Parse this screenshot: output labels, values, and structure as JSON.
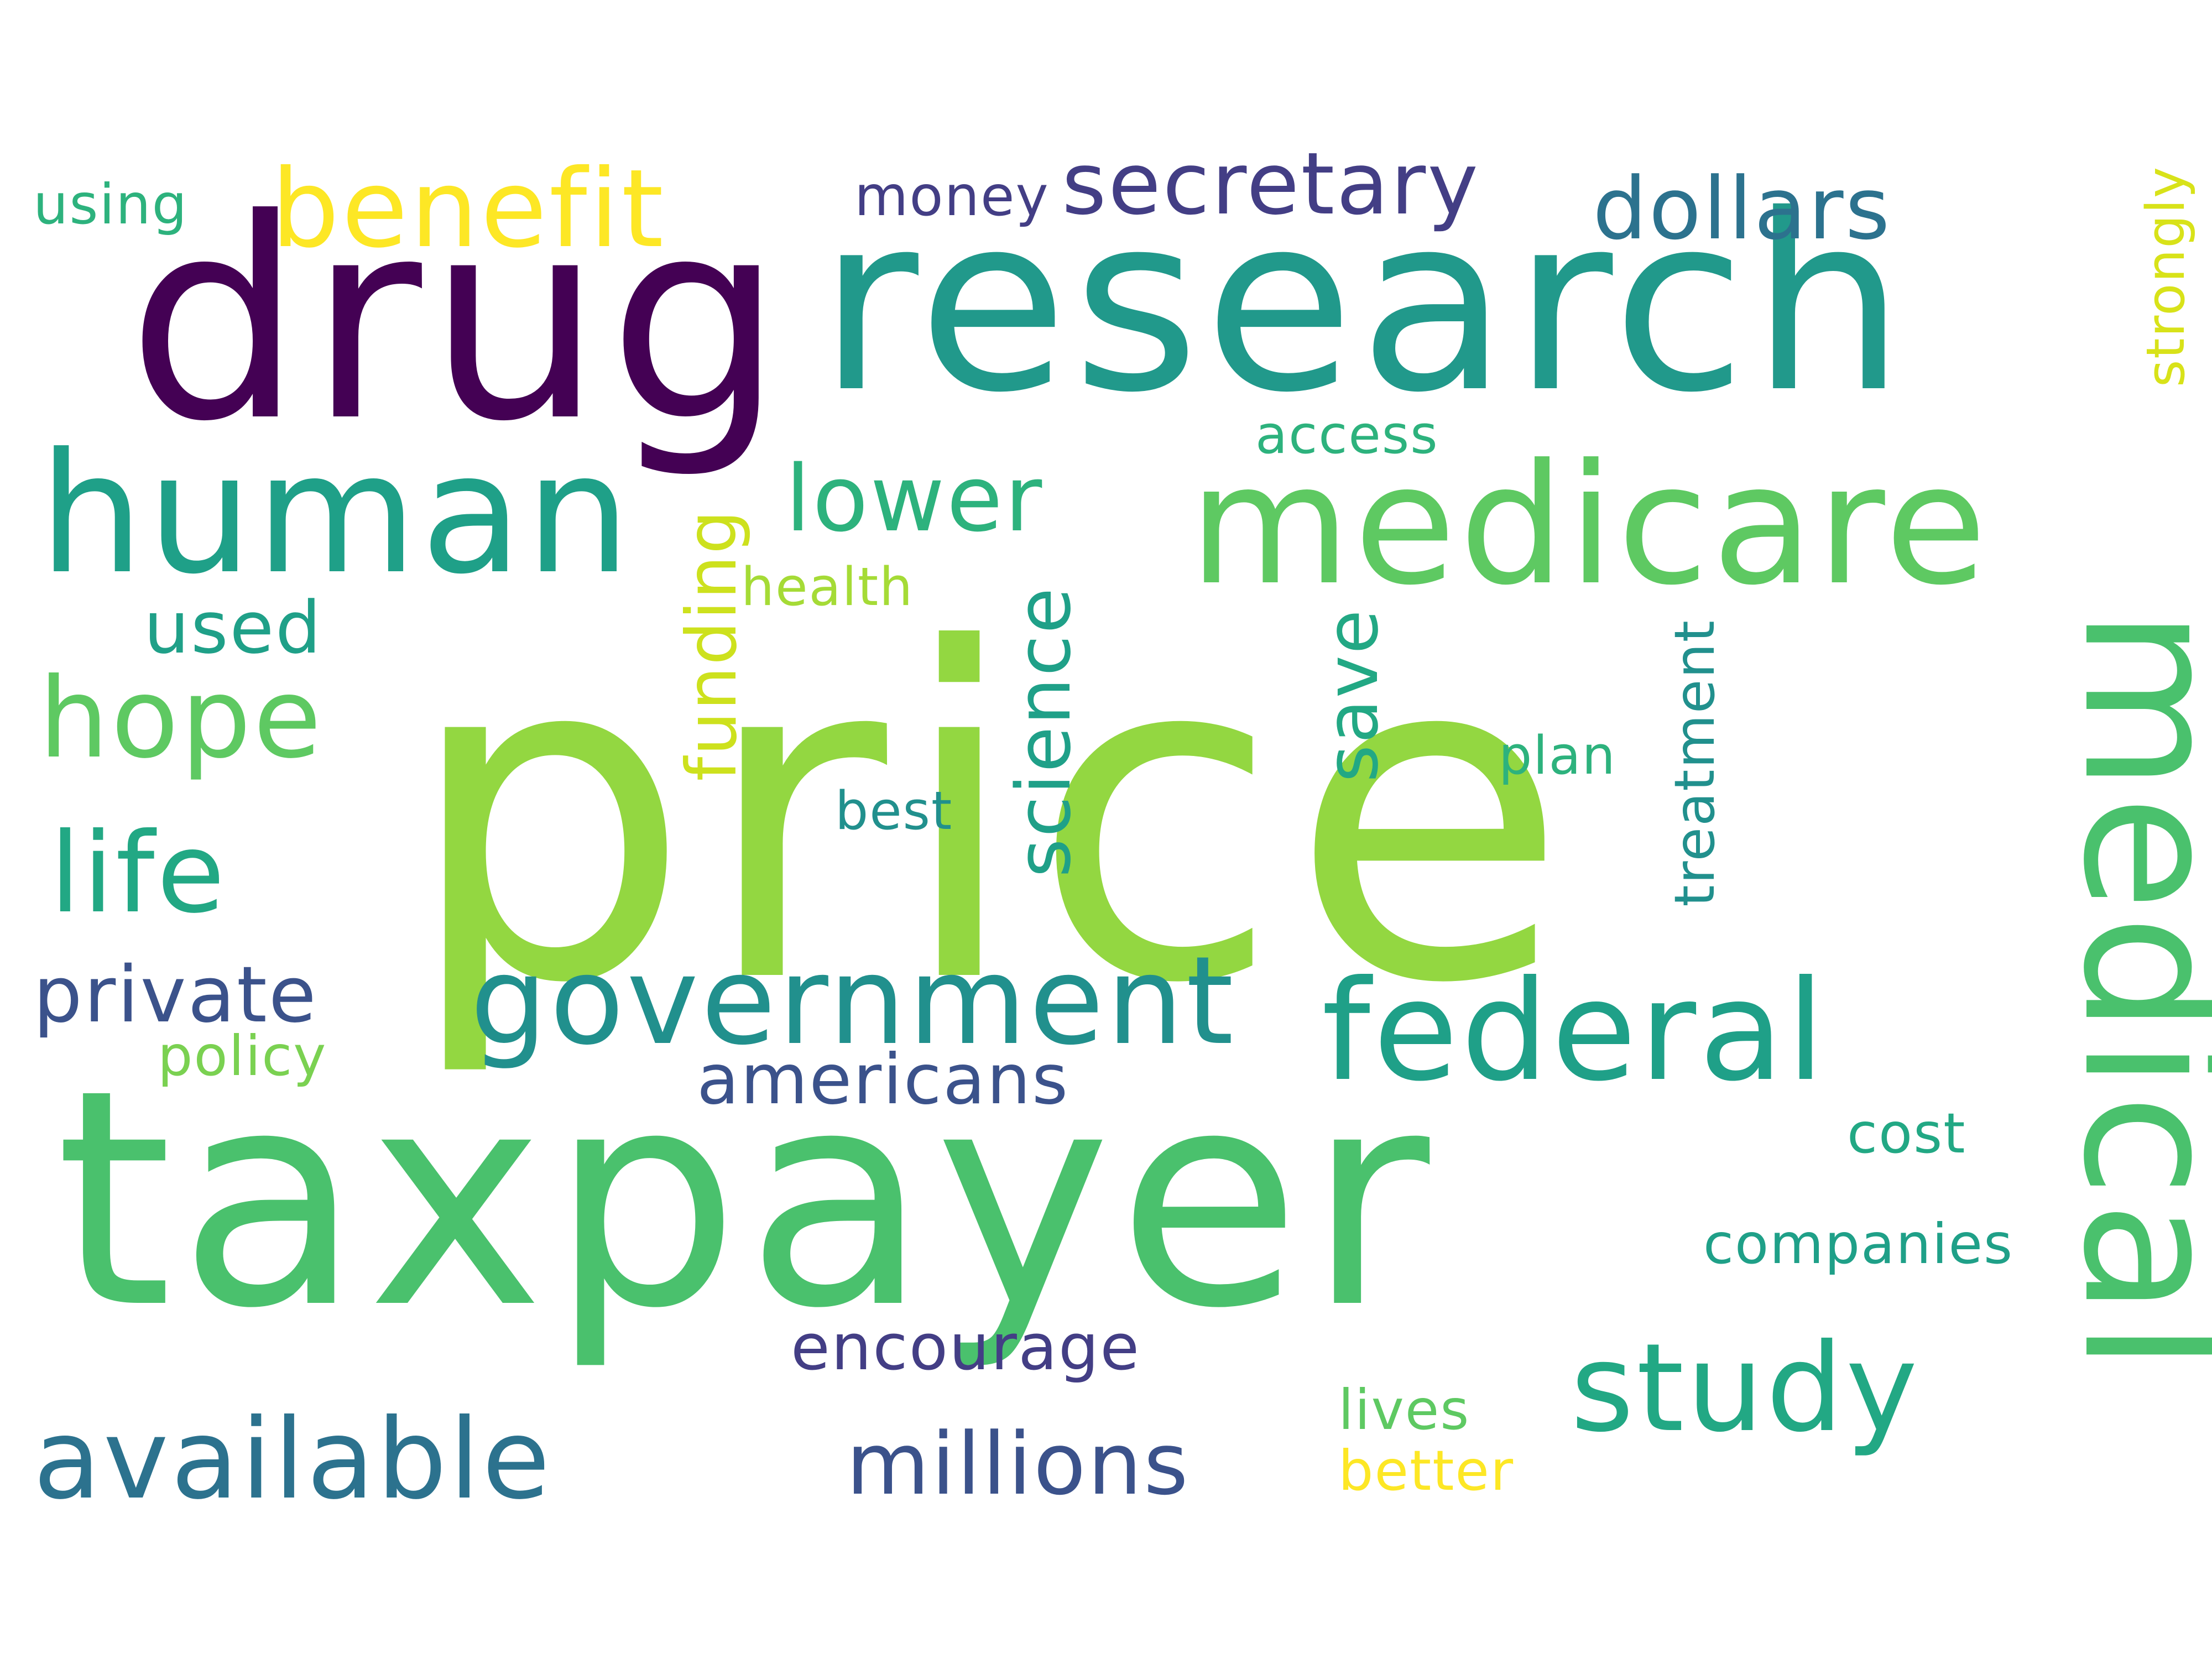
{
  "palette": {
    "background": "#ffffff",
    "deep_purple": "#440154",
    "indigo": "#433e85",
    "slate_blue": "#3b528b",
    "steel_blue": "#31688e",
    "teal_blue": "#2c728e",
    "teal": "#21908d",
    "teal_green": "#1fa088",
    "sea_green": "#22a884",
    "jade": "#2db27d",
    "green": "#4ac16d",
    "light_green": "#5ec962",
    "lime": "#7ad151",
    "yellow_green": "#b5de2b",
    "yellow": "#fde725"
  },
  "words": {
    "price": "price",
    "taxpayer": "taxpayer",
    "research": "research",
    "drug": "drug",
    "medical": "medical",
    "medicare": "medicare",
    "human": "human",
    "government": "government",
    "federal": "federal",
    "study": "study",
    "available": "available",
    "benefit": "benefit",
    "hope": "hope",
    "life": "life",
    "lower": "lower",
    "secretary": "secretary",
    "dollars": "dollars",
    "millions": "millions",
    "private": "private",
    "science": "science",
    "funding": "funding",
    "save": "save",
    "americans": "americans",
    "encourage": "encourage",
    "treatment": "treatment",
    "companies": "companies",
    "used": "used",
    "strongly": "strongly",
    "money": "money",
    "using": "using",
    "access": "access",
    "health": "health",
    "policy": "policy",
    "plan": "plan",
    "best": "best",
    "cost": "cost",
    "lives": "lives",
    "better": "better"
  }
}
